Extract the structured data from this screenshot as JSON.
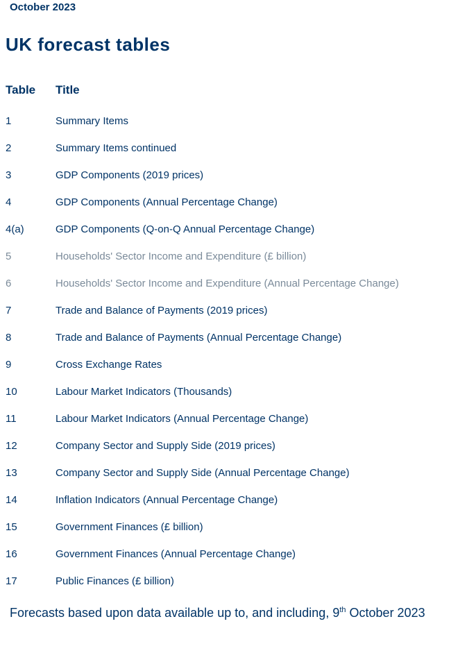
{
  "colors": {
    "brand": "#003366",
    "muted": "#7a8a99",
    "background": "#ffffff"
  },
  "dateLine": "October 2023",
  "heading": "UK forecast tables",
  "columns": {
    "id": "Table",
    "title": "Title"
  },
  "rows": [
    {
      "id": "1",
      "title": "Summary Items",
      "muted": false
    },
    {
      "id": "2",
      "title": "Summary Items continued",
      "muted": false
    },
    {
      "id": "3",
      "title": "GDP Components (2019 prices)",
      "muted": false
    },
    {
      "id": "4",
      "title": "GDP Components (Annual Percentage Change)",
      "muted": false
    },
    {
      "id": "4(a)",
      "title": "GDP Components (Q-on-Q Annual Percentage Change)",
      "muted": false
    },
    {
      "id": "5",
      "title": "Households' Sector Income and Expenditure (£ billion)",
      "muted": true
    },
    {
      "id": "6",
      "title": "Households' Sector Income and Expenditure (Annual Percentage Change)",
      "muted": true
    },
    {
      "id": "7",
      "title": "Trade and Balance of Payments (2019 prices)",
      "muted": false
    },
    {
      "id": "8",
      "title": "Trade and Balance of Payments (Annual Percentage Change)",
      "muted": false
    },
    {
      "id": "9",
      "title": "Cross Exchange Rates",
      "muted": false
    },
    {
      "id": "10",
      "title": "Labour Market Indicators (Thousands)",
      "muted": false
    },
    {
      "id": "11",
      "title": "Labour Market Indicators (Annual Percentage Change)",
      "muted": false
    },
    {
      "id": "12",
      "title": "Company Sector and Supply Side (2019 prices)",
      "muted": false
    },
    {
      "id": "13",
      "title": "Company Sector and Supply Side (Annual Percentage Change)",
      "muted": false
    },
    {
      "id": "14",
      "title": "Inflation Indicators (Annual Percentage Change)",
      "muted": false
    },
    {
      "id": "15",
      "title": "Government Finances (£ billion)",
      "muted": false
    },
    {
      "id": "16",
      "title": "Government Finances (Annual Percentage Change)",
      "muted": false
    },
    {
      "id": "17",
      "title": "Public Finances (£ billion)",
      "muted": false
    }
  ],
  "footnote": {
    "prefix": "Forecasts based upon data available up to, and including, 9",
    "super": "th",
    "suffix": " October 2023"
  }
}
